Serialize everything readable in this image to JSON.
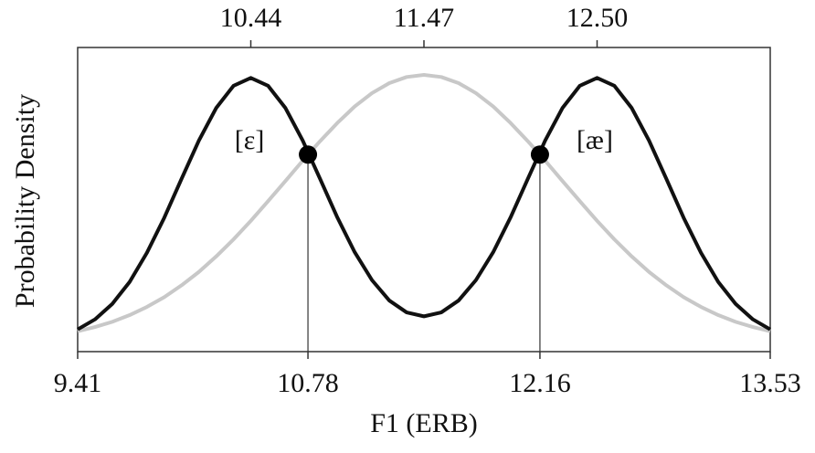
{
  "chart_data": {
    "type": "line",
    "xlabel": "F1 (ERB)",
    "ylabel": "Probability Density",
    "x": [
      9.41,
      9.513,
      9.616,
      9.719,
      9.822,
      9.925,
      10.028,
      10.131,
      10.234,
      10.337,
      10.44,
      10.543,
      10.646,
      10.749,
      10.852,
      10.955,
      11.058,
      11.161,
      11.264,
      11.367,
      11.47,
      11.573,
      11.676,
      11.779,
      11.882,
      11.985,
      12.088,
      12.191,
      12.294,
      12.397,
      12.5,
      12.603,
      12.706,
      12.809,
      12.912,
      13.015,
      13.118,
      13.221,
      13.324,
      13.427,
      13.53
    ],
    "series": [
      {
        "color": "#c8c8c8",
        "values": [
          0.067,
          0.081,
          0.098,
          0.12,
          0.147,
          0.179,
          0.218,
          0.262,
          0.313,
          0.369,
          0.43,
          0.495,
          0.561,
          0.628,
          0.692,
          0.752,
          0.806,
          0.85,
          0.883,
          0.903,
          0.91,
          0.903,
          0.883,
          0.85,
          0.806,
          0.752,
          0.692,
          0.628,
          0.561,
          0.495,
          0.43,
          0.369,
          0.313,
          0.262,
          0.218,
          0.179,
          0.147,
          0.12,
          0.098,
          0.081,
          0.067
        ]
      },
      {
        "color": "#111111",
        "values": [
          0.073,
          0.106,
          0.157,
          0.229,
          0.325,
          0.44,
          0.568,
          0.694,
          0.801,
          0.874,
          0.9,
          0.874,
          0.801,
          0.694,
          0.568,
          0.441,
          0.327,
          0.235,
          0.168,
          0.129,
          0.116,
          0.129,
          0.168,
          0.235,
          0.327,
          0.441,
          0.568,
          0.694,
          0.801,
          0.874,
          0.9,
          0.874,
          0.801,
          0.694,
          0.568,
          0.44,
          0.325,
          0.229,
          0.157,
          0.106,
          0.073
        ]
      }
    ],
    "points": {
      "x": [
        10.78,
        12.16
      ],
      "values": [
        0.648,
        0.648
      ],
      "labels": [
        "[ε]",
        "[æ]"
      ],
      "color": "#000000"
    },
    "xlim": [
      9.41,
      13.53
    ],
    "xticks": [
      9.41,
      10.78,
      12.16,
      13.53
    ],
    "x2lim": [
      9.41,
      13.53
    ],
    "x2ticks": [
      10.44,
      11.47,
      {
        "value": 12.5,
        "label": "12.50"
      }
    ],
    "ylim": [
      0,
      1
    ]
  }
}
